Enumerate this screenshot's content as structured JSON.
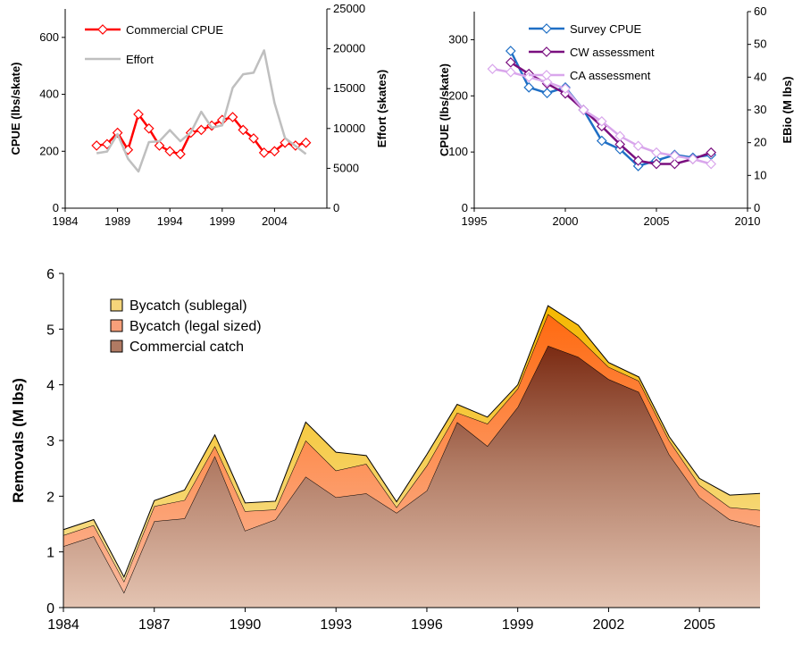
{
  "chart_data": [
    {
      "type": "line",
      "xlim": [
        1984,
        2009
      ],
      "xticks": [
        1984,
        1989,
        1994,
        1999,
        2004
      ],
      "ylim": [
        0,
        700
      ],
      "yticks": [
        0,
        200,
        400,
        600
      ],
      "y2lim": [
        0,
        25000
      ],
      "y2ticks": [
        0,
        5000,
        10000,
        15000,
        20000,
        25000
      ],
      "ylabel": "CPUE (lbs/skate)",
      "y2label": "Effort (skates)",
      "legend": "top-left",
      "series": [
        {
          "name": "Commercial CPUE",
          "axis": "left",
          "color": "#ff0000",
          "marker": "diamond",
          "x": [
            1987,
            1988,
            1989,
            1990,
            1991,
            1992,
            1993,
            1994,
            1995,
            1996,
            1997,
            1998,
            1999,
            2000,
            2001,
            2002,
            2003,
            2004,
            2005,
            2006,
            2007
          ],
          "y": [
            220,
            225,
            265,
            205,
            330,
            280,
            220,
            200,
            190,
            265,
            275,
            290,
            310,
            320,
            275,
            245,
            195,
            200,
            230,
            220,
            230
          ]
        },
        {
          "name": "Effort",
          "axis": "right",
          "color": "#bfbfbf",
          "marker": "none",
          "x": [
            1987,
            1988,
            1989,
            1990,
            1991,
            1992,
            1993,
            1994,
            1995,
            1996,
            1997,
            1998,
            1999,
            2000,
            2001,
            2002,
            2003,
            2004,
            2005,
            2006,
            2007
          ],
          "y": [
            6900,
            7100,
            9300,
            6200,
            4600,
            8300,
            8400,
            9800,
            8400,
            9500,
            12100,
            10100,
            10400,
            15100,
            16800,
            17000,
            19800,
            13200,
            8800,
            7800,
            6800
          ]
        }
      ]
    },
    {
      "type": "line",
      "xlim": [
        1995,
        2010
      ],
      "xticks": [
        1995,
        2000,
        2005,
        2010
      ],
      "ylim": [
        0,
        350
      ],
      "yticks": [
        0,
        100,
        200,
        300
      ],
      "y2lim": [
        0,
        60
      ],
      "y2ticks": [
        0,
        10,
        20,
        30,
        40,
        50,
        60
      ],
      "ylabel": "CPUE (lbs/skate)",
      "y2label": "EBio (M lbs)",
      "legend": "top-right",
      "series": [
        {
          "name": "Survey CPUE",
          "axis": "left",
          "color": "#1f6fc5",
          "marker": "diamond",
          "x": [
            1997,
            1998,
            1999,
            2000,
            2001,
            2002,
            2003,
            2004,
            2005,
            2006,
            2007,
            2008
          ],
          "y": [
            280,
            215,
            205,
            215,
            175,
            120,
            105,
            75,
            85,
            95,
            90,
            95
          ]
        },
        {
          "name": "CW assessment",
          "axis": "right",
          "color": "#7a0f7f",
          "marker": "diamond",
          "x": [
            1997,
            1998,
            1999,
            2000,
            2001,
            2002,
            2003,
            2004,
            2005,
            2006,
            2007,
            2008
          ],
          "y": [
            44.5,
            41,
            38,
            35,
            30,
            25,
            19.5,
            14.5,
            13.5,
            13.5,
            15,
            17
          ]
        },
        {
          "name": "CA assessment",
          "axis": "right",
          "color": "#d9a6ec",
          "marker": "diamond",
          "x": [
            1996,
            1997,
            1998,
            1999,
            2000,
            2001,
            2002,
            2003,
            2004,
            2005,
            2006,
            2007,
            2008
          ],
          "y": [
            42.5,
            41.5,
            40,
            38.5,
            36.5,
            30,
            26.5,
            22,
            19,
            17,
            16,
            15,
            13.5
          ]
        }
      ]
    },
    {
      "type": "area",
      "stacked": true,
      "xlim": [
        1984,
        2007
      ],
      "xticks": [
        1984,
        1987,
        1990,
        1993,
        1996,
        1999,
        2002,
        2005
      ],
      "ylim": [
        0,
        6
      ],
      "yticks": [
        0,
        1,
        2,
        3,
        4,
        5,
        6
      ],
      "ylabel": "Removals (M lbs)",
      "legend": "top-left",
      "x": [
        1984,
        1985,
        1986,
        1987,
        1988,
        1989,
        1990,
        1991,
        1992,
        1993,
        1994,
        1995,
        1996,
        1997,
        1998,
        1999,
        2000,
        2001,
        2002,
        2003,
        2004,
        2005,
        2006,
        2007
      ],
      "series": [
        {
          "name": "Commercial catch",
          "color": "#b07a63",
          "values": [
            1.1,
            1.28,
            0.27,
            1.55,
            1.6,
            2.72,
            1.38,
            1.58,
            2.35,
            1.98,
            2.05,
            1.7,
            2.1,
            3.33,
            2.9,
            3.6,
            4.7,
            4.5,
            4.1,
            3.87,
            2.75,
            1.98,
            1.58,
            1.45
          ]
        },
        {
          "name": "Bycatch (legal sized)",
          "color": "#f7a07a",
          "values": [
            0.2,
            0.2,
            0.2,
            0.27,
            0.33,
            0.18,
            0.35,
            0.18,
            0.65,
            0.48,
            0.53,
            0.1,
            0.45,
            0.17,
            0.4,
            0.33,
            0.57,
            0.35,
            0.22,
            0.2,
            0.25,
            0.22,
            0.22,
            0.3
          ]
        },
        {
          "name": "Bycatch (sublegal)",
          "color": "#f5d57a",
          "values": [
            0.1,
            0.1,
            0.08,
            0.1,
            0.18,
            0.2,
            0.15,
            0.15,
            0.33,
            0.33,
            0.15,
            0.1,
            0.2,
            0.15,
            0.12,
            0.07,
            0.15,
            0.22,
            0.08,
            0.07,
            0.07,
            0.12,
            0.22,
            0.3
          ]
        }
      ]
    }
  ]
}
